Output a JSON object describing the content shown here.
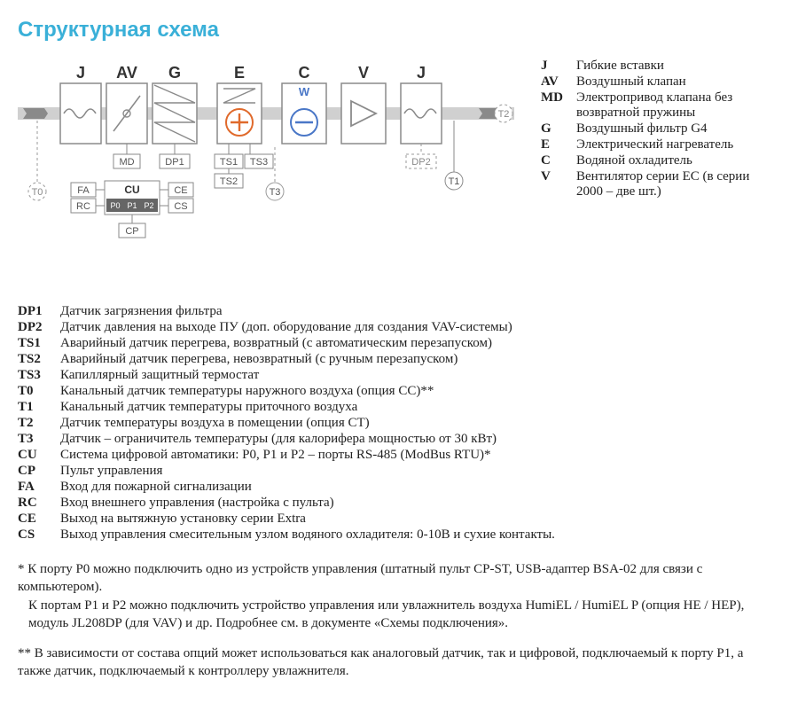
{
  "title": "Структурная схема",
  "colors": {
    "title": "#3ab0d8",
    "blockStroke": "#8a8a8a",
    "blockFill": "#ffffff",
    "duct": "#d0d0d0",
    "arrowFill": "#8a8a8a",
    "text": "#333333",
    "dashed": "#9a9a9a",
    "labelBox": "#8a8a8a",
    "plusStroke": "#e06a2c",
    "minusStroke": "#4a77c7",
    "wText": "#4a77c7",
    "cuBarFill": "#666666",
    "cuBarText": "#ffffff"
  },
  "schematic": {
    "blockLabels": [
      "J",
      "AV",
      "G",
      "E",
      "C",
      "V",
      "J"
    ],
    "smallBoxes": {
      "MD": "MD",
      "DP1": "DP1",
      "TS1": "TS1",
      "TS3": "TS3",
      "TS2": "TS2",
      "T3": "T3",
      "DP2": "DP2",
      "T1": "T1",
      "T0": "T0",
      "T2": "T2",
      "FA": "FA",
      "RC": "RC",
      "CU": "CU",
      "CE": "CE",
      "CS": "CS",
      "CP": "CP",
      "P0": "P0",
      "P1": "P1",
      "P2": "P2",
      "W": "W"
    }
  },
  "legendTop": [
    {
      "code": "J",
      "desc": "Гибкие вставки"
    },
    {
      "code": "AV",
      "desc": "Воздушный клапан"
    },
    {
      "code": "MD",
      "desc": "Электропривод клапана без возвратной пружины"
    },
    {
      "code": "G",
      "desc": "Воздушный фильтр G4"
    },
    {
      "code": "E",
      "desc": "Электрический нагреватель"
    },
    {
      "code": "C",
      "desc": "Водяной охладитель"
    },
    {
      "code": "V",
      "desc": "Вентилятор серии EC (в серии 2000 – две шт.)"
    }
  ],
  "legendMain": [
    {
      "code": "DP1",
      "desc": "Датчик загрязнения фильтра"
    },
    {
      "code": "DP2",
      "desc": "Датчик давления на выходе ПУ (доп. оборудование для создания VAV-системы)"
    },
    {
      "code": "TS1",
      "desc": "Аварийный датчик перегрева, возвратный (с автоматическим перезапуском)"
    },
    {
      "code": "TS2",
      "desc": "Аварийный датчик перегрева, невозвратный (с ручным перезапуском)"
    },
    {
      "code": "TS3",
      "desc": "Капиллярный защитный термостат"
    },
    {
      "code": "T0",
      "desc": "Канальный датчик температуры наружного воздуха (опция CC)**"
    },
    {
      "code": "T1",
      "desc": "Канальный датчик температуры приточного воздуха"
    },
    {
      "code": "T2",
      "desc": "Датчик температуры воздуха в помещении (опция CT)"
    },
    {
      "code": "T3",
      "desc": "Датчик – ограничитель температуры (для калорифера мощностью от 30 кВт)"
    },
    {
      "code": "CU",
      "desc": "Система цифровой автоматики: P0, P1 и P2 – порты RS-485 (ModBus RTU)*"
    },
    {
      "code": "CP",
      "desc": "Пульт управления"
    },
    {
      "code": "FA",
      "desc": "Вход для пожарной сигнализации"
    },
    {
      "code": "RC",
      "desc": "Вход внешнего управления (настройка с пульта)"
    },
    {
      "code": "CE",
      "desc": "Выход на вытяжную установку серии Extra"
    },
    {
      "code": "CS",
      "desc": "Выход управления смесительным узлом водяного охладителя: 0-10В и сухие контакты."
    }
  ],
  "footnotes": {
    "f1a": "* К порту P0 можно подключить одно из устройств управления (штатный пульт CP-ST, USB-адаптер BSA-02 для связи с компьютером).",
    "f1b": "К портам P1 и P2 можно подключить устройство управления или увлажнитель воздуха HumiEL /  HumiEL P (опция HE / HEP), модуль JL208DP (для VAV) и др. Подробнее см. в документе «Схемы подключения».",
    "f2": "** В зависимости от состава опций может использоваться как аналоговый датчик, так и цифровой, подключаемый к порту P1, а также датчик, подключаемый к контроллеру увлажнителя."
  }
}
